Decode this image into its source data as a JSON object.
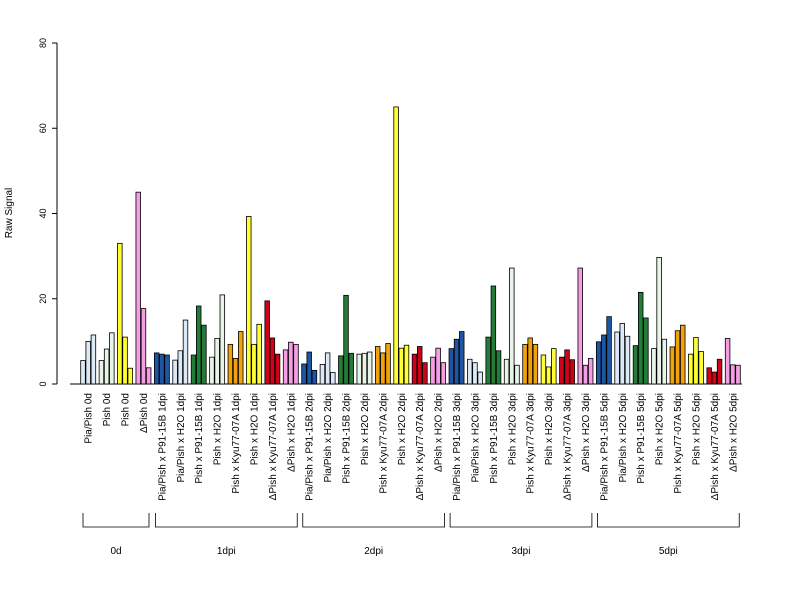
{
  "chart_data": {
    "type": "bar",
    "ylabel": "Raw Signal",
    "ylim": [
      0,
      80
    ],
    "yticks": [
      0,
      20,
      40,
      60,
      80
    ],
    "grid": false,
    "legend": "none",
    "categories": [
      {
        "label": "Pia/Pish 0d",
        "color": "#dce9f7",
        "values": [
          5.5,
          10.0,
          11.5
        ]
      },
      {
        "label": "Pish 0d",
        "color": "#e8f4e8",
        "values": [
          5.5,
          8.2,
          12.0
        ]
      },
      {
        "label": "Pish 0d",
        "color": "#ffff33",
        "values": [
          33.0,
          11.0,
          3.7
        ]
      },
      {
        "label": "ΔPish 0d",
        "color": "#f59ee6",
        "values": [
          45.0,
          17.7,
          3.8
        ]
      },
      {
        "label": "Pia/Pish x P91-15B 1dpi",
        "color": "#1f56a3",
        "values": [
          7.3,
          7.0,
          6.8
        ]
      },
      {
        "label": "Pia/Pish x H2O 1dpi",
        "color": "#dce9f7",
        "values": [
          5.6,
          7.8,
          15.0
        ]
      },
      {
        "label": "Pish x P91-15B 1dpi",
        "color": "#237d37",
        "values": [
          6.8,
          18.3,
          13.8
        ]
      },
      {
        "label": "Pish x H2O 1dpi",
        "color": "#e8f4e8",
        "values": [
          6.3,
          10.7,
          20.9
        ]
      },
      {
        "label": "Pish x Kyu77-07A 1dpi",
        "color": "#f2a20d",
        "values": [
          9.3,
          6.0,
          12.3
        ]
      },
      {
        "label": "Pish x H2O 1dpi",
        "color": "#ffff33",
        "values": [
          39.3,
          9.3,
          14.0
        ]
      },
      {
        "label": "ΔPish x Kyu77-07A 1dpi",
        "color": "#d0021b",
        "values": [
          19.5,
          10.8,
          7.0
        ]
      },
      {
        "label": "ΔPish x H2O 1dpi",
        "color": "#f59ee6",
        "values": [
          8.0,
          9.8,
          9.3
        ]
      },
      {
        "label": "Pia/Pish x P91-15B 2dpi",
        "color": "#1f56a3",
        "values": [
          4.7,
          7.5,
          3.2
        ]
      },
      {
        "label": "Pia/Pish x H2O 2dpi",
        "color": "#dce9f7",
        "values": [
          4.6,
          7.3,
          2.7
        ]
      },
      {
        "label": "Pish x P91-15B 2dpi",
        "color": "#237d37",
        "values": [
          6.6,
          20.8,
          7.2
        ]
      },
      {
        "label": "Pish x H2O 2dpi",
        "color": "#e8f4e8",
        "values": [
          7.0,
          7.2,
          7.5
        ]
      },
      {
        "label": "Pish x Kyu77-07A 2dpi",
        "color": "#f2a20d",
        "values": [
          8.8,
          7.3,
          9.5
        ]
      },
      {
        "label": "Pish x H2O 2dpi",
        "color": "#ffff33",
        "values": [
          65.0,
          8.4,
          9.1
        ]
      },
      {
        "label": "ΔPish x Kyu77-07A 2dpi",
        "color": "#d0021b",
        "values": [
          7.0,
          8.8,
          5.0
        ]
      },
      {
        "label": "ΔPish x H2O 2dpi",
        "color": "#f59ee6",
        "values": [
          6.3,
          8.4,
          5.0
        ]
      },
      {
        "label": "Pia/Pish x P91-15B 3dpi",
        "color": "#1f56a3",
        "values": [
          8.3,
          10.5,
          12.3
        ]
      },
      {
        "label": "Pia/Pish x H2O 3dpi",
        "color": "#dce9f7",
        "values": [
          5.8,
          5.0,
          2.8
        ]
      },
      {
        "label": "Pish x P91-15B 3dpi",
        "color": "#237d37",
        "values": [
          11.0,
          23.0,
          7.8
        ]
      },
      {
        "label": "Pish x H2O 3dpi",
        "color": "#e8f4e8",
        "values": [
          5.8,
          27.2,
          4.4
        ]
      },
      {
        "label": "Pish x Kyu77-07A 3dpi",
        "color": "#f2a20d",
        "values": [
          9.3,
          10.8,
          9.3
        ]
      },
      {
        "label": "Pish x H2O 3dpi",
        "color": "#ffff33",
        "values": [
          6.8,
          4.0,
          8.3
        ]
      },
      {
        "label": "ΔPish x Kyu77-07A 3dpi",
        "color": "#d0021b",
        "values": [
          6.3,
          8.0,
          5.7
        ]
      },
      {
        "label": "ΔPish x H2O 3dpi",
        "color": "#f59ee6",
        "values": [
          27.2,
          4.4,
          6.0
        ]
      },
      {
        "label": "Pia/Pish x P91-15B 5dpi",
        "color": "#1f56a3",
        "values": [
          9.9,
          11.5,
          15.8
        ]
      },
      {
        "label": "Pia/Pish x H2O 5dpi",
        "color": "#dce9f7",
        "values": [
          12.2,
          14.2,
          11.2
        ]
      },
      {
        "label": "Pish x P91-15B 5dpi",
        "color": "#237d37",
        "values": [
          9.0,
          21.5,
          15.5
        ]
      },
      {
        "label": "Pish x H2O 5dpi",
        "color": "#e8f4e8",
        "values": [
          8.3,
          29.7,
          10.5
        ]
      },
      {
        "label": "Pish x Kyu77-07A 5dpi",
        "color": "#f2a20d",
        "values": [
          8.7,
          12.5,
          13.8
        ]
      },
      {
        "label": "Pish x H2O 5dpi",
        "color": "#ffff33",
        "values": [
          7.0,
          10.9,
          7.6
        ]
      },
      {
        "label": "ΔPish x Kyu77-07A 5dpi",
        "color": "#d0021b",
        "values": [
          3.8,
          2.8,
          5.8
        ]
      },
      {
        "label": "ΔPish x H2O 5dpi",
        "color": "#f59ee6",
        "values": [
          10.7,
          4.5,
          4.4
        ]
      }
    ],
    "groups": [
      {
        "label": "0d",
        "from": 0,
        "to": 3
      },
      {
        "label": "1dpi",
        "from": 4,
        "to": 11
      },
      {
        "label": "2dpi",
        "from": 12,
        "to": 19
      },
      {
        "label": "3dpi",
        "from": 20,
        "to": 27
      },
      {
        "label": "5dpi",
        "from": 28,
        "to": 35
      }
    ]
  }
}
